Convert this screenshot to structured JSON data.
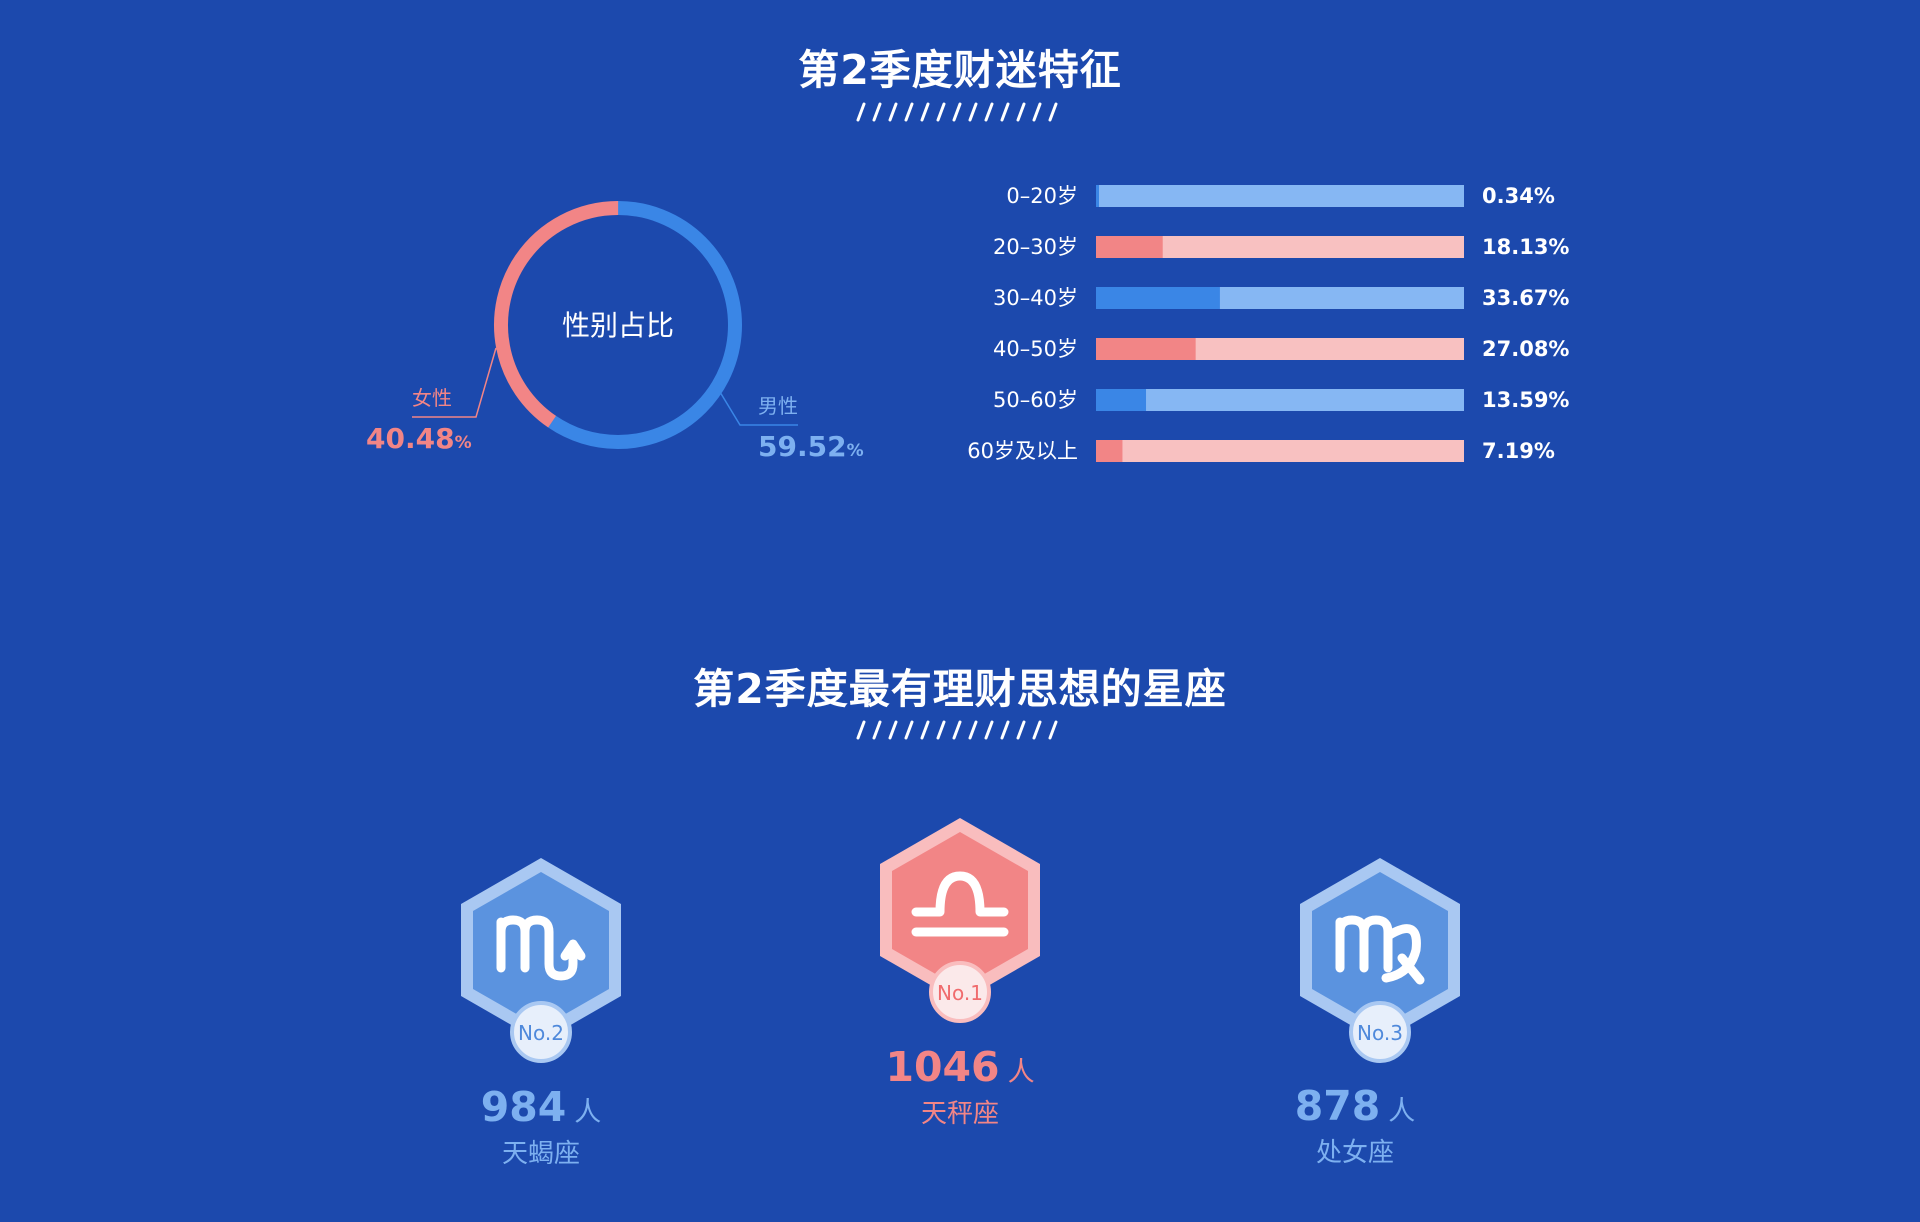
{
  "section1": {
    "title": "第2季度财迷特征"
  },
  "section2": {
    "title": "第2季度最有理财思想的星座"
  },
  "colors": {
    "background": "#1c49ad",
    "male": "#3a86e6",
    "male_track": "#86b7f3",
    "female": "#f28586",
    "female_track": "#f8c1c1",
    "text_blue": "#7db0f0",
    "text_pink": "#f28586"
  },
  "chart_data": [
    {
      "type": "pie",
      "title": "性别占比",
      "slices": [
        {
          "label": "男性",
          "value": 59.52,
          "display": "59.52",
          "unit": "%"
        },
        {
          "label": "女性",
          "value": 40.48,
          "display": "40.48",
          "unit": "%"
        }
      ]
    },
    {
      "type": "bar",
      "orientation": "horizontal",
      "categories": [
        "0–20岁",
        "20–30岁",
        "30–40岁",
        "40–50岁",
        "50–60岁",
        "60岁及以上"
      ],
      "values": [
        0.34,
        18.13,
        33.67,
        27.08,
        13.59,
        7.19
      ],
      "value_labels": [
        "0.34%",
        "18.13%",
        "33.67%",
        "27.08%",
        "13.59%",
        "7.19%"
      ],
      "xlim": [
        0,
        100
      ],
      "bar_colors": [
        "blue",
        "pink",
        "blue",
        "pink",
        "blue",
        "pink"
      ]
    }
  ],
  "zodiac": [
    {
      "rank": 1,
      "rank_label": "No.1",
      "sign": "天秤座",
      "icon": "libra-icon",
      "count": "1046",
      "unit": "人",
      "color": "pink"
    },
    {
      "rank": 2,
      "rank_label": "No.2",
      "sign": "天蝎座",
      "icon": "scorpio-icon",
      "count": "984",
      "unit": "人",
      "color": "blue"
    },
    {
      "rank": 3,
      "rank_label": "No.3",
      "sign": "处女座",
      "icon": "virgo-icon",
      "count": "878",
      "unit": "人",
      "color": "blue"
    }
  ]
}
